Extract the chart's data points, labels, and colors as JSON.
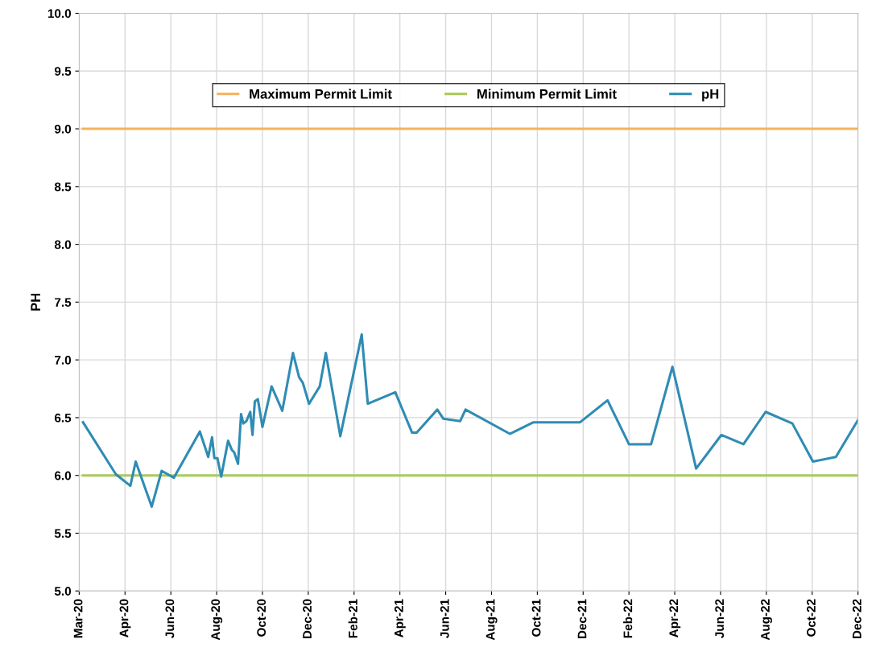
{
  "chart_data": {
    "type": "line",
    "ylabel": "PH",
    "ylim": [
      5.0,
      10.0
    ],
    "yticks": [
      {
        "value": 5.0,
        "label": "5.0"
      },
      {
        "value": 5.5,
        "label": "5.5"
      },
      {
        "value": 6.0,
        "label": "6.0"
      },
      {
        "value": 6.5,
        "label": "6.5"
      },
      {
        "value": 7.0,
        "label": "7.0"
      },
      {
        "value": 7.5,
        "label": "7.5"
      },
      {
        "value": 8.0,
        "label": "8.0"
      },
      {
        "value": 8.5,
        "label": "8.5"
      },
      {
        "value": 9.0,
        "label": "9.0"
      },
      {
        "value": 9.5,
        "label": "9.5"
      },
      {
        "value": 10.0,
        "label": "10.0"
      }
    ],
    "xlim": [
      "2020-03-01",
      "2022-12-16"
    ],
    "xticks": [
      {
        "value": "2020-03-01",
        "label": "Mar-20"
      },
      {
        "value": "2020-04-30",
        "label": "Apr-20"
      },
      {
        "value": "2020-06-29",
        "label": "Jun-20"
      },
      {
        "value": "2020-08-28",
        "label": "Aug-20"
      },
      {
        "value": "2020-10-27",
        "label": "Oct-20"
      },
      {
        "value": "2020-12-26",
        "label": "Dec-20"
      },
      {
        "value": "2021-02-24",
        "label": "Feb-21"
      },
      {
        "value": "2021-04-25",
        "label": "Apr-21"
      },
      {
        "value": "2021-06-24",
        "label": "Jun-21"
      },
      {
        "value": "2021-08-23",
        "label": "Aug-21"
      },
      {
        "value": "2021-10-22",
        "label": "Oct-21"
      },
      {
        "value": "2021-12-21",
        "label": "Dec-21"
      },
      {
        "value": "2022-02-19",
        "label": "Feb-22"
      },
      {
        "value": "2022-04-20",
        "label": "Apr-22"
      },
      {
        "value": "2022-06-19",
        "label": "Jun-22"
      },
      {
        "value": "2022-08-18",
        "label": "Aug-22"
      },
      {
        "value": "2022-10-17",
        "label": "Oct-22"
      },
      {
        "value": "2022-12-16",
        "label": "Dec-22"
      }
    ],
    "grid": true,
    "legend": "top",
    "marker": "none",
    "line_style": "solid",
    "series": [
      {
        "name": "Maximum Permit Limit",
        "color": "#f2b35e",
        "x": [
          "2020-03-06",
          "2022-12-16"
        ],
        "values": [
          9.0,
          9.0
        ]
      },
      {
        "name": "Minimum Permit Limit",
        "color": "#a9c95a",
        "x": [
          "2020-03-06",
          "2022-12-16"
        ],
        "values": [
          6.0,
          6.0
        ]
      },
      {
        "name": "pH",
        "color": "#2f8cb4",
        "x": [
          "2020-03-06",
          "2020-04-18",
          "2020-05-07",
          "2020-05-14",
          "2020-06-04",
          "2020-06-17",
          "2020-07-03",
          "2020-08-06",
          "2020-08-17",
          "2020-08-22",
          "2020-08-25",
          "2020-08-29",
          "2020-09-03",
          "2020-09-12",
          "2020-09-17",
          "2020-09-20",
          "2020-09-25",
          "2020-09-29",
          "2020-10-02",
          "2020-10-06",
          "2020-10-11",
          "2020-10-14",
          "2020-10-17",
          "2020-10-21",
          "2020-10-27",
          "2020-11-08",
          "2020-11-22",
          "2020-12-06",
          "2020-12-14",
          "2020-12-19",
          "2020-12-27",
          "2021-01-10",
          "2021-01-18",
          "2021-02-06",
          "2021-03-06",
          "2021-03-14",
          "2021-04-19",
          "2021-05-11",
          "2021-05-17",
          "2021-06-13",
          "2021-06-21",
          "2021-07-13",
          "2021-07-20",
          "2021-09-16",
          "2021-10-17",
          "2021-12-17",
          "2022-01-22",
          "2022-02-19",
          "2022-03-20",
          "2022-04-17",
          "2022-05-18",
          "2022-06-20",
          "2022-07-19",
          "2022-08-17",
          "2022-09-21",
          "2022-10-18",
          "2022-11-17",
          "2022-12-16"
        ],
        "values": [
          6.46,
          6.01,
          5.91,
          6.12,
          5.73,
          6.04,
          5.98,
          6.38,
          6.16,
          6.33,
          6.15,
          6.15,
          5.99,
          6.3,
          6.22,
          6.2,
          6.1,
          6.53,
          6.45,
          6.47,
          6.55,
          6.35,
          6.64,
          6.66,
          6.42,
          6.77,
          6.56,
          7.06,
          6.85,
          6.8,
          6.62,
          6.77,
          7.06,
          6.34,
          7.22,
          6.62,
          6.72,
          6.37,
          6.37,
          6.57,
          6.49,
          6.47,
          6.57,
          6.36,
          6.46,
          6.46,
          6.65,
          6.27,
          6.27,
          6.94,
          6.06,
          6.35,
          6.27,
          6.55,
          6.45,
          6.12,
          6.16,
          6.48
        ]
      }
    ]
  }
}
